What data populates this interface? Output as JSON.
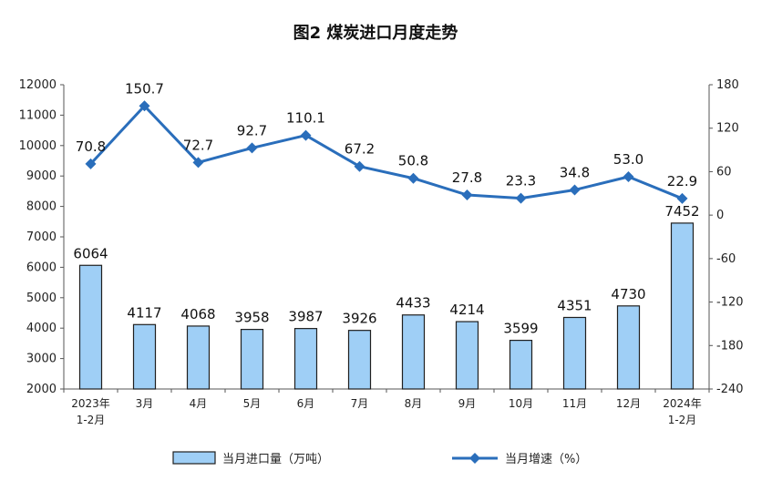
{
  "chart_data": {
    "type": "bar+line",
    "title": "图2  煤炭进口月度走势",
    "categories": [
      [
        "2023年",
        "1-2月"
      ],
      [
        "3月"
      ],
      [
        "4月"
      ],
      [
        "5月"
      ],
      [
        "6月"
      ],
      [
        "7月"
      ],
      [
        "8月"
      ],
      [
        "9月"
      ],
      [
        "10月"
      ],
      [
        "11月"
      ],
      [
        "12月"
      ],
      [
        "2024年",
        "1-2月"
      ]
    ],
    "series": [
      {
        "name": "当月进口量（万吨）",
        "type": "bar",
        "axis": "left",
        "values": [
          6064,
          4117,
          4068,
          3958,
          3987,
          3926,
          4433,
          4214,
          3599,
          4351,
          4730,
          7452
        ],
        "labels": [
          "6064",
          "4117",
          "4068",
          "3958",
          "3987",
          "3926",
          "4433",
          "4214",
          "3599",
          "4351",
          "4730",
          "7452"
        ],
        "color": "#9fcff6",
        "border": "#1f1f1f"
      },
      {
        "name": "当月增速（%）",
        "type": "line",
        "axis": "right",
        "values": [
          70.8,
          150.7,
          72.7,
          92.7,
          110.1,
          67.2,
          50.8,
          27.8,
          23.3,
          34.8,
          53.0,
          22.9
        ],
        "labels": [
          "70.8",
          "150.7",
          "72.7",
          "92.7",
          "110.1",
          "67.2",
          "50.8",
          "27.8",
          "23.3",
          "34.8",
          "53.0",
          "22.9"
        ],
        "color": "#2a6ebb"
      }
    ],
    "y_left": {
      "min": 2000,
      "max": 12000,
      "step": 1000,
      "ticks": [
        "2000",
        "3000",
        "4000",
        "5000",
        "6000",
        "7000",
        "8000",
        "9000",
        "10000",
        "11000",
        "12000"
      ]
    },
    "y_right": {
      "min": -240,
      "max": 180,
      "step": 60,
      "ticks": [
        "-240",
        "-180",
        "-120",
        "-60",
        "0",
        "60",
        "120",
        "180"
      ]
    },
    "grid": false,
    "legend_position": "bottom"
  }
}
